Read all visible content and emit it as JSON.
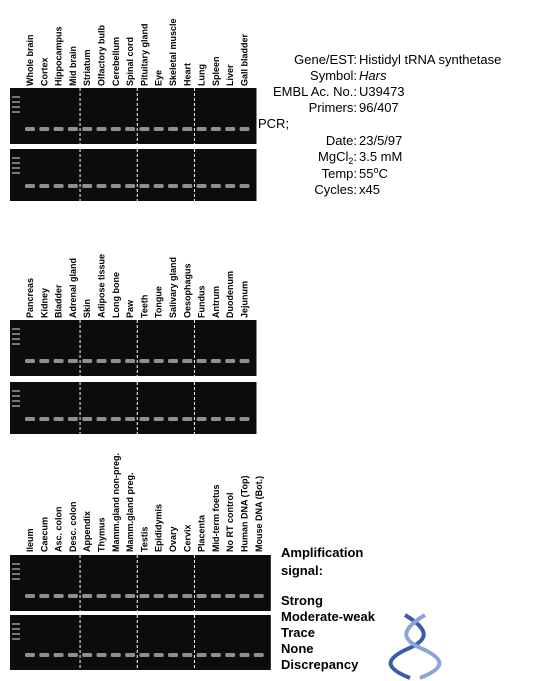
{
  "panels": [
    {
      "lanes": [
        {
          "label": "Whole brain",
          "color": "#0a0a78"
        },
        {
          "label": "Cortex",
          "color": "#1e96dc"
        },
        {
          "label": "Hippocampus",
          "color": "#1e96dc"
        },
        {
          "label": "Mid brain",
          "color": "#1e96dc"
        },
        {
          "label": "Striatum",
          "color": "#1e96dc"
        },
        {
          "label": "Olfactory bulb",
          "color": "#1e96dc"
        },
        {
          "label": "Cerebellum",
          "color": "#0a0a78"
        },
        {
          "label": "Spinal cord",
          "color": "#0a0a78"
        },
        {
          "label": "Pituitary gland",
          "color": "#1e96dc"
        },
        {
          "label": "Eye",
          "color": "#0a0a78"
        },
        {
          "label": "Skeletal muscle",
          "color": "#1e96dc"
        },
        {
          "label": "Heart",
          "color": "#1e96dc"
        },
        {
          "label": "Lung",
          "color": "#1e96dc"
        },
        {
          "label": "Spleen",
          "color": "#1e96dc"
        },
        {
          "label": "Liver",
          "color": "#1e96dc"
        },
        {
          "label": "Gall bladder",
          "color": "#1e96dc"
        }
      ]
    },
    {
      "lanes": [
        {
          "label": "Pancreas",
          "color": "#f5d23c"
        },
        {
          "label": "Kidney",
          "color": "#1e96dc"
        },
        {
          "label": "Bladder",
          "color": "#1e96dc"
        },
        {
          "label": "Adrenal gland",
          "color": "#1e96dc"
        },
        {
          "label": "Skin",
          "color": "#1e96dc"
        },
        {
          "label": "Adipose tissue",
          "color": "#1e96dc"
        },
        {
          "label": "Long bone",
          "color": "#1e96dc"
        },
        {
          "label": "Paw",
          "color": "#1e96dc"
        },
        {
          "label": "Teeth",
          "color": "#1e96dc"
        },
        {
          "label": "Tongue",
          "color": "#1e96dc"
        },
        {
          "label": "Salivary gland",
          "color": "#1e96dc"
        },
        {
          "label": "Oesophagus",
          "color": "#1e96dc"
        },
        {
          "label": "Fundus",
          "color": "#0a0a78"
        },
        {
          "label": "Antrum",
          "color": "#1e96dc"
        },
        {
          "label": "Duodenum",
          "color": "#1e96dc"
        },
        {
          "label": "Jejunum",
          "color": "#1e96dc"
        }
      ]
    },
    {
      "lanes": [
        {
          "label": "Ileum",
          "color": "#0a0a78"
        },
        {
          "label": "Caecum",
          "color": "#1e96dc"
        },
        {
          "label": "Asc. colon",
          "color": "#1e96dc"
        },
        {
          "label": "Desc. colon",
          "color": "#1e96dc"
        },
        {
          "label": "Appendix",
          "color": "#1e96dc"
        },
        {
          "label": "Thymus",
          "color": "#1e96dc"
        },
        {
          "label": "Mamm.gland non-preg.",
          "color": "#1e96dc"
        },
        {
          "label": "Mamm.gland preg.",
          "color": "#0a0a78"
        },
        {
          "label": "Testis",
          "color": "#0a0a78"
        },
        {
          "label": "Epididymis",
          "color": "#1e96dc"
        },
        {
          "label": "Ovary",
          "color": "#1e96dc"
        },
        {
          "label": "Cervix",
          "color": "#1e96dc"
        },
        {
          "label": "Placenta",
          "color": "#1e96dc"
        },
        {
          "label": "Mid-term foetus",
          "color": "#0a0a78"
        },
        {
          "label": "No RT control",
          "color": "#f5d23c"
        },
        {
          "label": "Human DNA (Top)",
          "color": "#1e96dc"
        },
        {
          "label": "Mouse DNA (Bot.)",
          "color": "#0a0a78"
        }
      ]
    }
  ],
  "info": {
    "gene_key": "Gene/EST:",
    "gene": "Histidyl tRNA synthetase",
    "symbol_key": "Symbol:",
    "symbol": "Hars",
    "embl_key": "EMBL Ac. No.:",
    "embl": "U39473",
    "primers_key": "Primers:",
    "primers": "96/407",
    "pcr": "PCR;",
    "date_key": "Date:",
    "date": "23/5/97",
    "mg_key": "MgCl",
    "mg_sub": "2",
    "mg_colon": ":",
    "mg": "3.5 mM",
    "temp_key": "Temp:",
    "temp": "55",
    "temp_sup": "o",
    "temp_unit": "C",
    "cycles_key": "Cycles:",
    "cycles": "x45"
  },
  "legend": {
    "title": "Amplification",
    "title2": "signal:",
    "items": [
      {
        "label": "Strong",
        "color": "#0a0a78"
      },
      {
        "label": "Moderate-weak",
        "color": "#1e96dc"
      },
      {
        "label": "Trace",
        "color": "#5aa02c"
      },
      {
        "label": "None",
        "color": "#f5d23c"
      },
      {
        "label": "Discrepancy",
        "color": "#c80000"
      }
    ]
  }
}
